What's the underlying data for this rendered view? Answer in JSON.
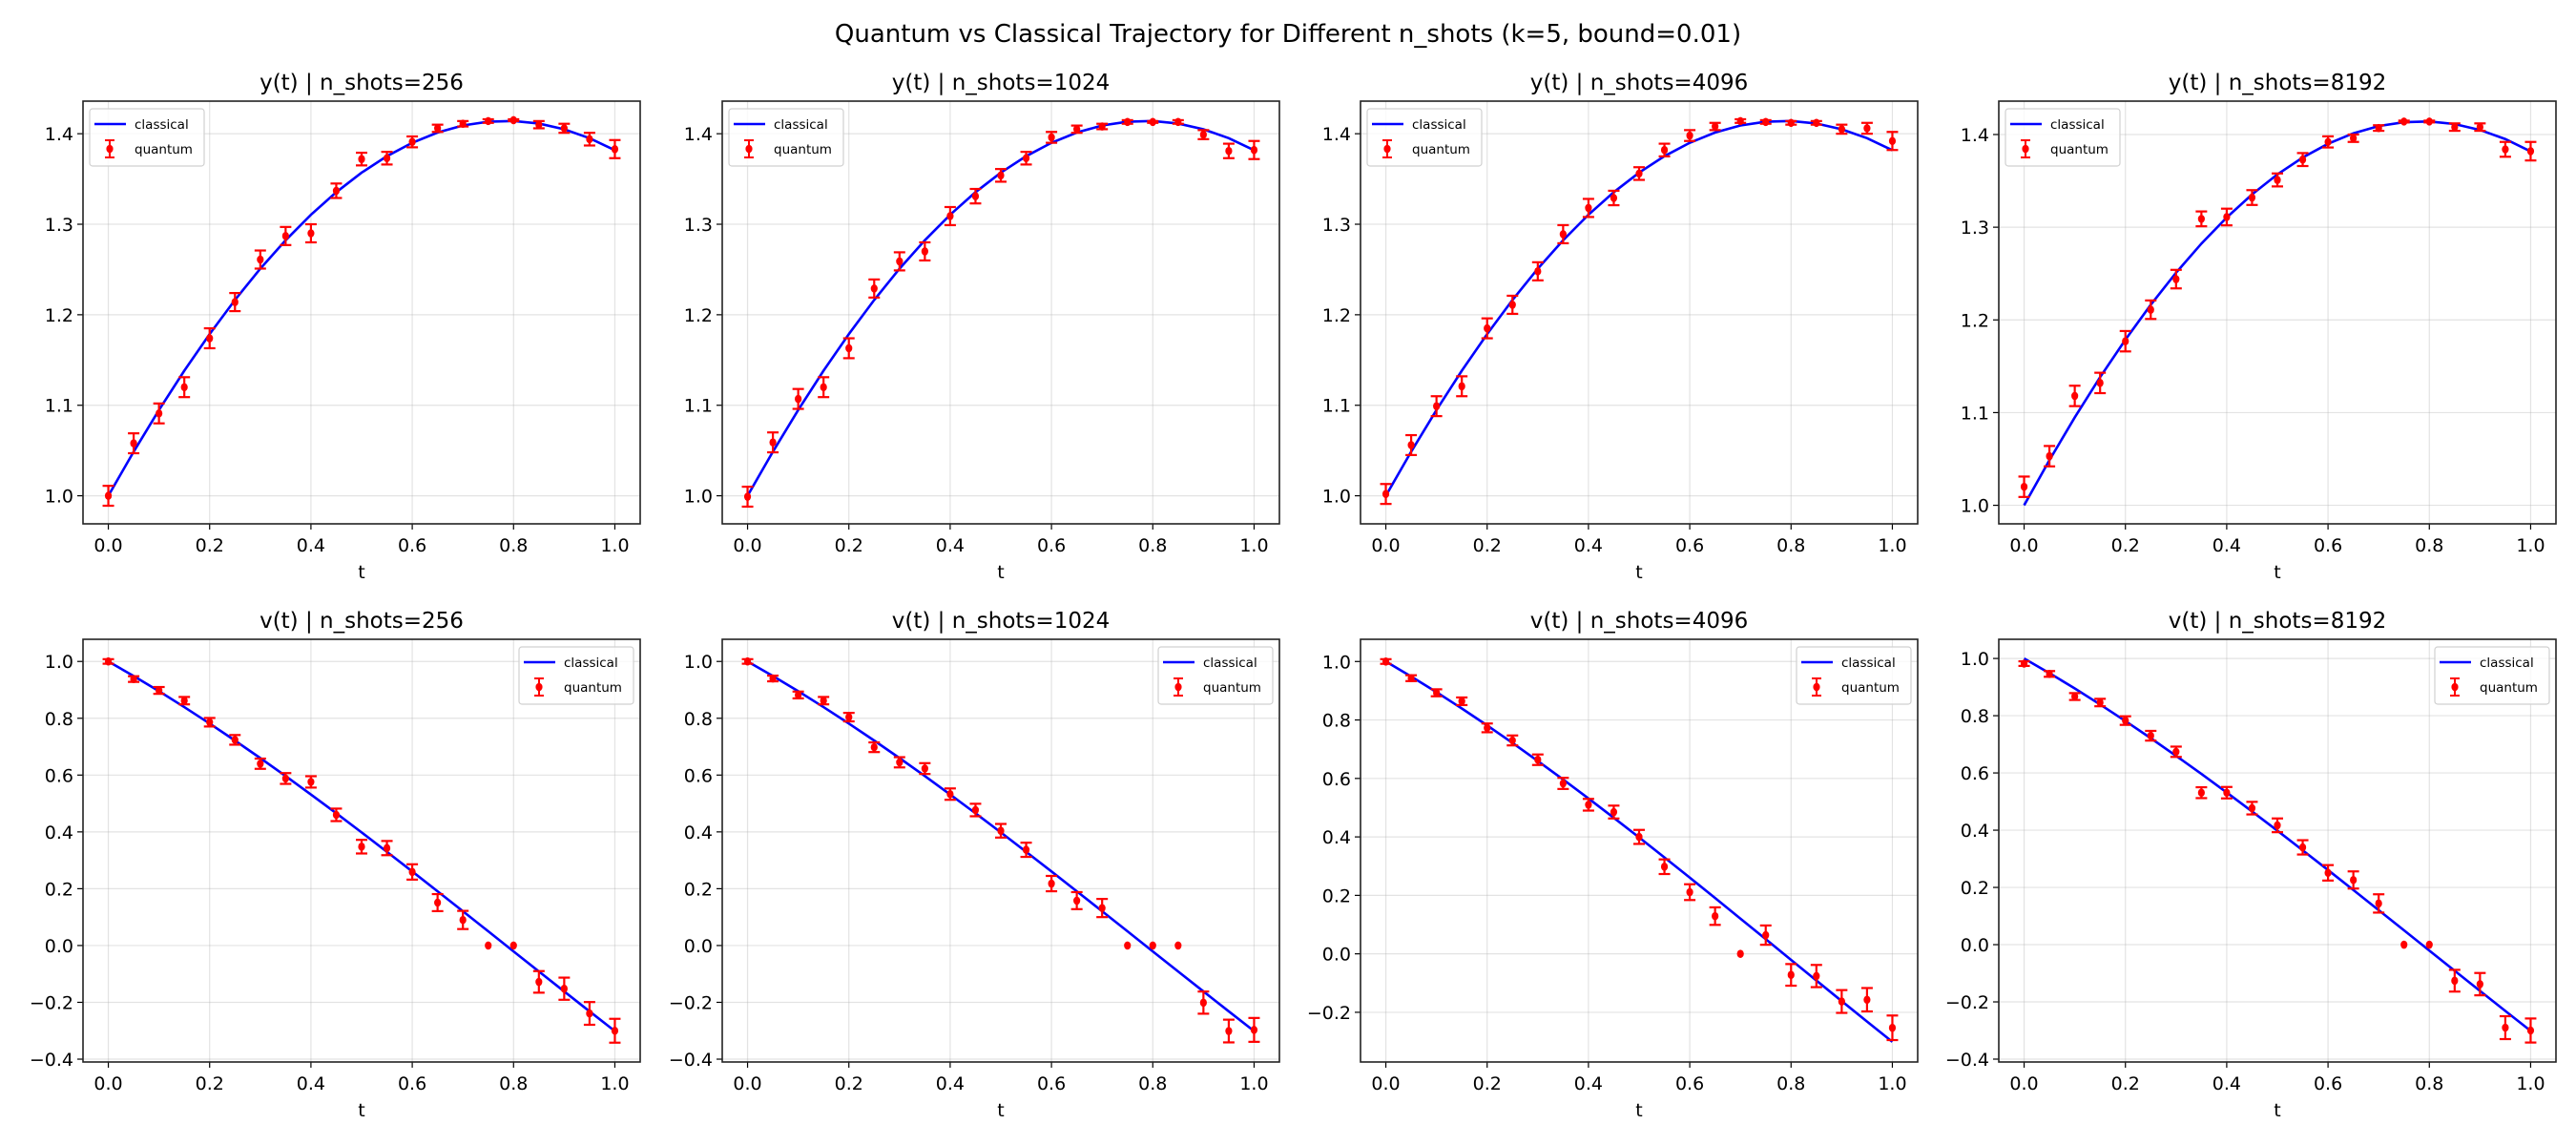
{
  "chart_data": [
    {
      "type": "line+errorbar",
      "suptitle": "Quantum vs Classical Trajectory for Different n_shots (k=5, bound=0.01)",
      "legend": {
        "classical": "classical",
        "quantum": "quantum"
      },
      "colors": {
        "classical": "#0000ff",
        "quantum": "#ff0000"
      },
      "grid": true,
      "t": [
        0,
        0.05,
        0.1,
        0.15,
        0.2,
        0.25,
        0.3,
        0.35,
        0.4,
        0.45,
        0.5,
        0.55,
        0.6,
        0.65,
        0.7,
        0.75,
        0.8,
        0.85,
        0.9,
        0.95,
        1.0
      ],
      "classical": {
        "y": [
          1.0,
          1.0487,
          1.0948,
          1.1382,
          1.1787,
          1.2163,
          1.2509,
          1.2823,
          1.3105,
          1.3354,
          1.357,
          1.3752,
          1.39,
          1.4013,
          1.4091,
          1.4133,
          1.4141,
          1.4113,
          1.4049,
          1.3951,
          1.3818
        ],
        "v": [
          1.0,
          0.9488,
          0.8952,
          0.8393,
          0.7814,
          0.7215,
          0.6598,
          0.5965,
          0.5316,
          0.4655,
          0.3982,
          0.3298,
          0.2607,
          0.1909,
          0.1206,
          0.0501,
          -0.0207,
          -0.0913,
          -0.1617,
          -0.2317,
          -0.3012
        ]
      },
      "panels": [
        {
          "title": "y(t) | n_shots=256",
          "xlabel": "t",
          "legend_loc": "upper left",
          "ylim": [
            0.969,
            1.436
          ],
          "yticks": [
            "1.0",
            "1.1",
            "1.2",
            "1.3",
            "1.4"
          ],
          "classical_key": "y",
          "quantum": [
            1.0,
            1.058,
            1.091,
            1.12,
            1.174,
            1.214,
            1.261,
            1.287,
            1.29,
            1.337,
            1.372,
            1.373,
            1.391,
            1.406,
            1.411,
            1.414,
            1.415,
            1.41,
            1.406,
            1.394,
            1.383
          ],
          "yerr": [
            0.011,
            0.011,
            0.011,
            0.011,
            0.011,
            0.01,
            0.01,
            0.01,
            0.01,
            0.008,
            0.007,
            0.007,
            0.006,
            0.004,
            0.003,
            0.002,
            0.001,
            0.004,
            0.005,
            0.007,
            0.01
          ]
        },
        {
          "title": "y(t) | n_shots=1024",
          "xlabel": "t",
          "legend_loc": "upper left",
          "ylim": [
            0.969,
            1.436
          ],
          "yticks": [
            "1.0",
            "1.1",
            "1.2",
            "1.3",
            "1.4"
          ],
          "classical_key": "y",
          "quantum": [
            0.999,
            1.059,
            1.107,
            1.12,
            1.163,
            1.229,
            1.259,
            1.27,
            1.309,
            1.331,
            1.354,
            1.373,
            1.396,
            1.405,
            1.408,
            1.413,
            1.413,
            1.413,
            1.399,
            1.381,
            1.382
          ],
          "yerr": [
            0.011,
            0.011,
            0.011,
            0.011,
            0.011,
            0.01,
            0.01,
            0.01,
            0.01,
            0.008,
            0.007,
            0.007,
            0.006,
            0.004,
            0.003,
            0.002,
            0.001,
            0.002,
            0.005,
            0.008,
            0.01
          ]
        },
        {
          "title": "y(t) | n_shots=4096",
          "xlabel": "t",
          "legend_loc": "upper left",
          "ylim": [
            0.969,
            1.436
          ],
          "yticks": [
            "1.0",
            "1.1",
            "1.2",
            "1.3",
            "1.4"
          ],
          "classical_key": "y",
          "quantum": [
            1.002,
            1.056,
            1.099,
            1.121,
            1.185,
            1.211,
            1.248,
            1.289,
            1.318,
            1.329,
            1.356,
            1.382,
            1.398,
            1.408,
            1.414,
            1.413,
            1.412,
            1.412,
            1.405,
            1.406,
            1.392
          ],
          "yerr": [
            0.011,
            0.011,
            0.011,
            0.011,
            0.011,
            0.01,
            0.01,
            0.01,
            0.01,
            0.008,
            0.007,
            0.007,
            0.006,
            0.004,
            0.002,
            0.002,
            0.002,
            0.002,
            0.005,
            0.006,
            0.01
          ]
        },
        {
          "title": "y(t) | n_shots=8192",
          "xlabel": "t",
          "legend_loc": "upper left",
          "ylim": [
            0.98,
            1.436
          ],
          "yticks": [
            "1.0",
            "1.1",
            "1.2",
            "1.3",
            "1.4"
          ],
          "classical_key": "y",
          "quantum": [
            1.02,
            1.053,
            1.118,
            1.132,
            1.177,
            1.211,
            1.244,
            1.309,
            1.311,
            1.332,
            1.351,
            1.373,
            1.392,
            1.396,
            1.407,
            1.414,
            1.414,
            1.408,
            1.408,
            1.384,
            1.382
          ],
          "yerr": [
            0.011,
            0.011,
            0.011,
            0.011,
            0.011,
            0.01,
            0.01,
            0.008,
            0.009,
            0.008,
            0.007,
            0.007,
            0.006,
            0.004,
            0.003,
            0.001,
            0.001,
            0.004,
            0.004,
            0.008,
            0.01
          ]
        },
        {
          "title": "v(t) | n_shots=256",
          "xlabel": "t",
          "legend_loc": "upper right",
          "ylim": [
            -0.41,
            1.078
          ],
          "yticks": [
            "−0.4",
            "−0.2",
            "0.0",
            "0.2",
            "0.4",
            "0.6",
            "0.8",
            "1.0"
          ],
          "classical_key": "v",
          "quantum": [
            1.0,
            0.938,
            0.898,
            0.862,
            0.786,
            0.724,
            0.64,
            0.588,
            0.576,
            0.46,
            0.348,
            0.343,
            0.259,
            0.151,
            0.09,
            0.0,
            0.0,
            -0.128,
            -0.152,
            -0.239,
            -0.3
          ],
          "yerr": [
            0.008,
            0.01,
            0.012,
            0.013,
            0.015,
            0.017,
            0.018,
            0.019,
            0.02,
            0.022,
            0.024,
            0.025,
            0.027,
            0.03,
            0.032,
            0,
            0,
            0.038,
            0.039,
            0.04,
            0.042
          ]
        },
        {
          "title": "v(t) | n_shots=1024",
          "xlabel": "t",
          "legend_loc": "upper right",
          "ylim": [
            -0.41,
            1.078
          ],
          "yticks": [
            "−0.4",
            "−0.2",
            "0.0",
            "0.2",
            "0.4",
            "0.6",
            "0.8",
            "1.0"
          ],
          "classical_key": "v",
          "quantum": [
            1.0,
            0.94,
            0.882,
            0.862,
            0.804,
            0.698,
            0.645,
            0.623,
            0.533,
            0.477,
            0.404,
            0.337,
            0.218,
            0.158,
            0.132,
            0.0,
            0.0,
            0.0,
            -0.201,
            -0.301,
            -0.297
          ],
          "yerr": [
            0.008,
            0.01,
            0.012,
            0.013,
            0.015,
            0.017,
            0.018,
            0.019,
            0.02,
            0.022,
            0.024,
            0.025,
            0.027,
            0.03,
            0.032,
            0,
            0,
            0,
            0.039,
            0.04,
            0.042
          ]
        },
        {
          "title": "v(t) | n_shots=4096",
          "xlabel": "t",
          "legend_loc": "upper right",
          "ylim": [
            -0.37,
            1.076
          ],
          "yticks": [
            "−0.2",
            "0.0",
            "0.2",
            "0.4",
            "0.6",
            "0.8",
            "1.0"
          ],
          "classical_key": "v",
          "quantum": [
            1.0,
            0.943,
            0.893,
            0.864,
            0.773,
            0.73,
            0.664,
            0.583,
            0.51,
            0.485,
            0.4,
            0.298,
            0.211,
            0.129,
            0.0,
            0.064,
            -0.072,
            -0.076,
            -0.163,
            -0.157,
            -0.253
          ],
          "yerr": [
            0.008,
            0.01,
            0.012,
            0.013,
            0.015,
            0.017,
            0.018,
            0.019,
            0.02,
            0.022,
            0.024,
            0.025,
            0.027,
            0.03,
            0,
            0.033,
            0.037,
            0.038,
            0.039,
            0.04,
            0.042
          ]
        },
        {
          "title": "v(t) | n_shots=8192",
          "xlabel": "t",
          "legend_loc": "upper right",
          "ylim": [
            -0.41,
            1.067
          ],
          "yticks": [
            "−0.4",
            "−0.2",
            "0.0",
            "0.2",
            "0.4",
            "0.6",
            "0.8",
            "1.0"
          ],
          "classical_key": "v",
          "quantum": [
            0.982,
            0.946,
            0.867,
            0.846,
            0.783,
            0.73,
            0.674,
            0.531,
            0.531,
            0.477,
            0.417,
            0.34,
            0.251,
            0.226,
            0.144,
            0.0,
            0.0,
            -0.126,
            -0.138,
            -0.29,
            -0.3
          ],
          "yerr": [
            0.008,
            0.01,
            0.012,
            0.013,
            0.015,
            0.017,
            0.018,
            0.019,
            0.02,
            0.022,
            0.024,
            0.025,
            0.027,
            0.03,
            0.032,
            0,
            0,
            0.038,
            0.039,
            0.04,
            0.042
          ]
        }
      ],
      "xlim": [
        -0.05,
        1.05
      ],
      "xticks": [
        "0.0",
        "0.2",
        "0.4",
        "0.6",
        "0.8",
        "1.0"
      ]
    }
  ]
}
